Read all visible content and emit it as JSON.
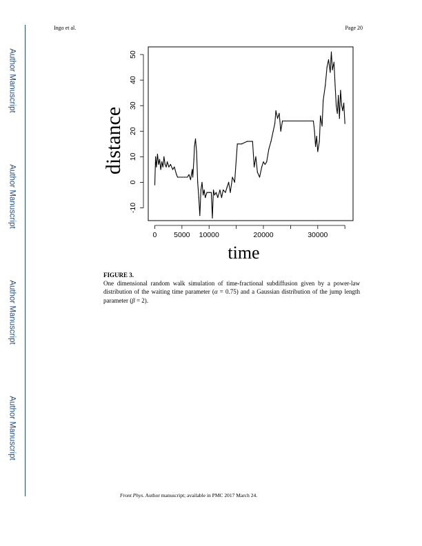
{
  "sidebar": {
    "labels": [
      "Author Manuscript",
      "Author Manuscript",
      "Author Manuscript",
      "Author Manuscript"
    ]
  },
  "header": {
    "left": "Ingo et al.",
    "right": "Page 20"
  },
  "figure": {
    "title": "FIGURE 3.",
    "caption_part1": "One dimensional random walk simulation of time-fractional subdiffusion given by a power-law distribution of the waiting time parameter (",
    "alpha_symbol": "α",
    "caption_part2": " = 0.75) and a Gaussian distribution of the jump length parameter (",
    "beta_symbol": "β",
    "caption_part3": " = 2)."
  },
  "chart_data": {
    "type": "line",
    "xlabel": "time",
    "ylabel": "distance",
    "xlim": [
      0,
      35000
    ],
    "ylim": [
      -15,
      53
    ],
    "xticks": [
      0,
      5000,
      10000,
      20000,
      30000
    ],
    "yticks": [
      -10,
      0,
      10,
      20,
      30,
      40,
      50
    ],
    "grid": false,
    "series": [
      {
        "color": "#000000",
        "x": [
          0,
          150,
          300,
          500,
          700,
          900,
          1100,
          1300,
          1500,
          1700,
          1900,
          2100,
          2300,
          2600,
          2900,
          3300,
          3600,
          4000,
          4200,
          4500,
          5000,
          5500,
          6000,
          6300,
          6600,
          6900,
          7000,
          7200,
          7300,
          7500,
          7700,
          7900,
          8100,
          8300,
          8500,
          8700,
          8900,
          9100,
          9300,
          9600,
          10000,
          10400,
          10600,
          10800,
          11000,
          11300,
          11600,
          12000,
          12300,
          12600,
          13000,
          13300,
          13600,
          13900,
          14300,
          14700,
          15200,
          16000,
          17000,
          18000,
          18300,
          18600,
          18900,
          19300,
          19700,
          20000,
          20300,
          20600,
          21000,
          21400,
          21800,
          22100,
          22300,
          22600,
          22900,
          23200,
          23500,
          24000,
          25000,
          26000,
          27000,
          28000,
          29200,
          29400,
          29600,
          29800,
          30000,
          30300,
          30500,
          30800,
          31000,
          31400,
          31700,
          32000,
          32300,
          32500,
          32700,
          33000,
          33200,
          33400,
          33600,
          33800,
          34000,
          34200,
          34400,
          34600,
          34800,
          35000
        ],
        "y": [
          -1,
          10,
          6,
          11,
          7,
          9,
          5,
          8,
          6,
          10,
          7,
          6,
          8,
          6,
          7,
          5,
          6,
          3,
          2,
          2,
          2,
          2,
          2,
          3,
          1,
          5,
          2,
          9,
          14,
          17,
          12,
          0,
          -6,
          -13,
          -3,
          0,
          -5,
          -3,
          -6,
          -4,
          -4,
          -4,
          -14,
          -3,
          -5,
          -4,
          -6,
          -3,
          -6,
          -3,
          -4,
          -2,
          0,
          -4,
          2,
          0,
          15,
          15,
          16,
          16,
          6,
          10,
          4,
          2,
          6,
          8,
          7,
          8,
          13,
          16,
          20,
          23,
          28,
          25,
          27,
          20,
          24,
          24,
          24,
          24,
          24,
          24,
          24,
          20,
          14,
          18,
          12,
          16,
          26,
          22,
          32,
          38,
          45,
          48,
          43,
          51,
          44,
          47,
          38,
          30,
          27,
          34,
          25,
          36,
          30,
          28,
          31,
          23
        ]
      }
    ]
  },
  "footer": {
    "journal": "Front Phys",
    "text": ". Author manuscript; available in PMC 2017 March 24."
  }
}
